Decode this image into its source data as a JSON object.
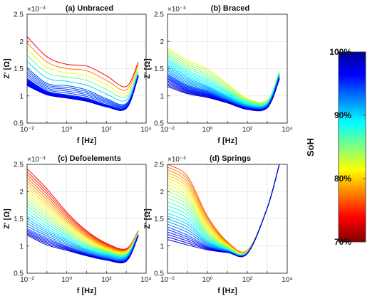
{
  "figure": {
    "colorbar": {
      "title": "SoH",
      "tick_labels": [
        "100%",
        "90%",
        "80%",
        "70%"
      ],
      "range_percent": [
        70,
        100
      ],
      "colormap": "jet (reversed; top = dark blue, bottom = dark red)"
    }
  },
  "chart_data": [
    {
      "type": "line",
      "title": "(a) Unbraced",
      "xlabel": "f [Hz]",
      "ylabel": "Z' [Ω]",
      "y_multiplier": "×10⁻³",
      "xscale": "log",
      "xlim": [
        0.01,
        10000
      ],
      "ylim": [
        0.5,
        2.5
      ],
      "x_tick_labels": [
        "10⁻²",
        "10⁰",
        "10²",
        "10⁴"
      ],
      "y_tick_labels": [
        "0.5",
        "1",
        "1.5",
        "2",
        "2.5"
      ],
      "grid": true,
      "x": [
        0.01,
        0.1,
        1,
        10,
        100,
        1000,
        4000
      ],
      "series": [
        {
          "soh": 72,
          "values": [
            2.09,
            1.72,
            1.58,
            1.55,
            1.37,
            1.17,
            1.62
          ]
        },
        {
          "soh": 95,
          "values": [
            1.52,
            1.23,
            1.19,
            1.11,
            0.95,
            0.86,
            1.39
          ]
        },
        {
          "soh": 96,
          "values": [
            1.32,
            1.09,
            1.02,
            0.96,
            0.84,
            0.8,
            1.37
          ]
        },
        {
          "soh": 97,
          "values": [
            1.28,
            1.07,
            1.0,
            0.94,
            0.82,
            0.78,
            1.36
          ]
        },
        {
          "soh": 98,
          "values": [
            1.23,
            1.04,
            0.98,
            0.92,
            0.81,
            0.77,
            1.36
          ]
        },
        {
          "soh": 99,
          "values": [
            1.19,
            1.02,
            0.96,
            0.9,
            0.8,
            0.77,
            1.35
          ]
        }
      ]
    },
    {
      "type": "line",
      "title": "(b) Braced",
      "xlabel": "f [Hz]",
      "ylabel": "Z' [Ω]",
      "y_multiplier": "×10⁻³",
      "xscale": "log",
      "xlim": [
        0.01,
        10000
      ],
      "ylim": [
        0.5,
        2.5
      ],
      "x_tick_labels": [
        "10⁻²",
        "10⁰",
        "10²",
        "10⁴"
      ],
      "y_tick_labels": [
        "0.5",
        "1",
        "1.5",
        "2",
        "2.5"
      ],
      "grid": true,
      "x": [
        0.01,
        0.1,
        1,
        10,
        100,
        1000,
        4000
      ],
      "series": [
        {
          "soh": 82,
          "values": [
            1.88,
            1.65,
            1.5,
            1.22,
            0.95,
            0.92,
            1.45
          ]
        },
        {
          "soh": 87,
          "values": [
            1.7,
            1.47,
            1.32,
            1.09,
            0.88,
            0.88,
            1.42
          ]
        },
        {
          "soh": 91,
          "values": [
            1.55,
            1.33,
            1.18,
            0.99,
            0.83,
            0.85,
            1.39
          ]
        },
        {
          "soh": 94,
          "values": [
            1.4,
            1.2,
            1.09,
            0.93,
            0.8,
            0.82,
            1.35
          ]
        },
        {
          "soh": 97,
          "values": [
            1.3,
            1.12,
            1.03,
            0.9,
            0.78,
            0.8,
            1.33
          ]
        },
        {
          "soh": 100,
          "values": [
            1.17,
            1.04,
            0.97,
            0.87,
            0.75,
            0.78,
            1.3
          ]
        }
      ]
    },
    {
      "type": "line",
      "title": "(c) Defoelements",
      "xlabel": "f [Hz]",
      "ylabel": "Z' [Ω]",
      "y_multiplier": "×10⁻³",
      "xscale": "log",
      "xlim": [
        0.01,
        10000
      ],
      "ylim": [
        0.5,
        2.5
      ],
      "x_tick_labels": [
        "10⁻²",
        "10⁰",
        "10²",
        "10⁴"
      ],
      "y_tick_labels": [
        "0.5",
        "1",
        "1.5",
        "2",
        "2.5"
      ],
      "grid": true,
      "x": [
        0.01,
        0.1,
        1,
        10,
        100,
        1000,
        4000
      ],
      "series": [
        {
          "soh": 72,
          "values": [
            2.42,
            2.05,
            1.62,
            1.28,
            1.05,
            0.95,
            1.28
          ]
        },
        {
          "soh": 78,
          "values": [
            2.15,
            1.8,
            1.45,
            1.17,
            0.98,
            0.91,
            1.26
          ]
        },
        {
          "soh": 84,
          "values": [
            1.85,
            1.55,
            1.28,
            1.05,
            0.91,
            0.86,
            1.24
          ]
        },
        {
          "soh": 90,
          "values": [
            1.55,
            1.32,
            1.13,
            0.95,
            0.85,
            0.82,
            1.22
          ]
        },
        {
          "soh": 95,
          "values": [
            1.32,
            1.15,
            1.0,
            0.87,
            0.78,
            0.76,
            1.2
          ]
        },
        {
          "soh": 100,
          "values": [
            1.2,
            1.02,
            0.92,
            0.82,
            0.74,
            0.72,
            1.18
          ]
        }
      ]
    },
    {
      "type": "line",
      "title": "(d) Springs",
      "xlabel": "f [Hz]",
      "ylabel": "Z' [Ω]",
      "y_multiplier": "×10⁻³",
      "xscale": "log",
      "xlim": [
        0.01,
        10000
      ],
      "ylim": [
        0.5,
        2.5
      ],
      "x_tick_labels": [
        "10⁻²",
        "10⁰",
        "10²",
        "10⁴"
      ],
      "y_tick_labels": [
        "0.5",
        "1",
        "1.5",
        "2",
        "2.5"
      ],
      "grid": true,
      "x": [
        0.01,
        0.1,
        1,
        10,
        100,
        1000,
        4000
      ],
      "series": [
        {
          "soh": 75,
          "values": [
            2.5,
            2.28,
            1.55,
            1.08,
            0.92,
            1.7,
            2.5
          ]
        },
        {
          "soh": 80,
          "values": [
            2.25,
            2.02,
            1.38,
            1.02,
            0.9,
            1.7,
            2.5
          ]
        },
        {
          "soh": 85,
          "values": [
            1.95,
            1.75,
            1.22,
            0.97,
            0.89,
            1.7,
            2.5
          ]
        },
        {
          "soh": 90,
          "values": [
            1.6,
            1.45,
            1.1,
            0.93,
            0.88,
            1.7,
            2.5
          ]
        },
        {
          "soh": 95,
          "values": [
            1.35,
            1.2,
            1.0,
            0.9,
            0.87,
            1.7,
            2.5
          ]
        },
        {
          "soh": 100,
          "values": [
            1.12,
            1.02,
            0.93,
            0.88,
            0.86,
            1.7,
            2.5
          ]
        }
      ]
    }
  ]
}
